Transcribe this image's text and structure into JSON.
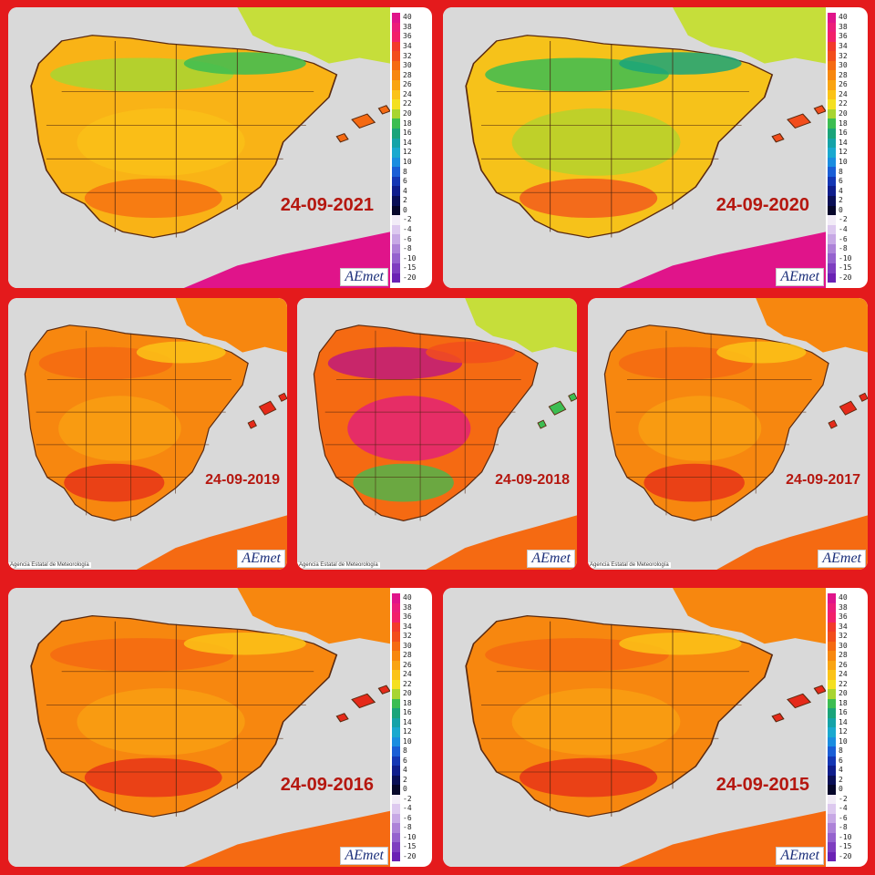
{
  "panels": [
    {
      "date": "24-09-2021",
      "theme": "mild",
      "legend": true,
      "agency": ""
    },
    {
      "date": "24-09-2020",
      "theme": "cool",
      "legend": true,
      "agency": ""
    },
    {
      "date": "24-09-2019",
      "theme": "warm",
      "legend": false,
      "agency": "Agencia Estatal de Meteorología"
    },
    {
      "date": "24-09-2018",
      "theme": "hot",
      "legend": false,
      "agency": "Agencia Estatal de Meteorología"
    },
    {
      "date": "24-09-2017",
      "theme": "warm",
      "legend": false,
      "agency": "Agencia Estatal de Meteorología"
    },
    {
      "date": "24-09-2016",
      "theme": "warm",
      "legend": true,
      "agency": ""
    },
    {
      "date": "24-09-2015",
      "theme": "warm",
      "legend": true,
      "agency": ""
    }
  ],
  "legend": {
    "values": [
      "40",
      "38",
      "36",
      "34",
      "32",
      "30",
      "28",
      "26",
      "24",
      "22",
      "20",
      "18",
      "16",
      "14",
      "12",
      "10",
      "8",
      "6",
      "4",
      "2",
      "0",
      "-2",
      "-4",
      "-6",
      "-8",
      "-10",
      "-15",
      "-20"
    ],
    "colors": [
      "#e0148a",
      "#ec1d7a",
      "#f2206a",
      "#f23a2b",
      "#f24d1c",
      "#f56a12",
      "#f7870f",
      "#f9a412",
      "#fbc318",
      "#f4e021",
      "#a8d531",
      "#3cbd52",
      "#1aa47a",
      "#15a3a8",
      "#1aa9cf",
      "#1a8de0",
      "#1a5ed6",
      "#1436b4",
      "#0f1d8c",
      "#0a0f56",
      "#06062a",
      "#f2ecf7",
      "#ddc9ef",
      "#c7a8e5",
      "#ad82d8",
      "#9562ce",
      "#7e3ec0",
      "#6a22b4"
    ]
  },
  "logo": {
    "text": "AEmet"
  },
  "colors": {
    "frame": "#e41a1c",
    "date_text": "#b5170f",
    "sea": "#d9d9d9"
  }
}
